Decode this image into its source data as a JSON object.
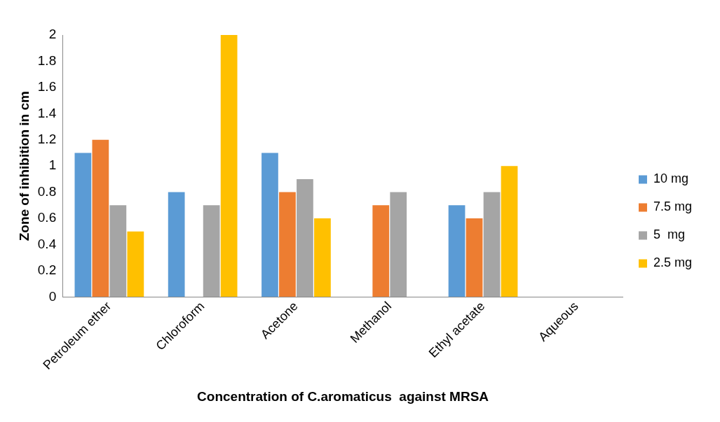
{
  "chart_data": {
    "type": "bar",
    "xlabel": "Concentration of C.aromaticus  against MRSA",
    "ylabel": "Zone of inhibition in cm",
    "categories": [
      "Petroleum ether",
      "Chloroform",
      "Acetone",
      "Methanol",
      "Ethyl acetate",
      "Aqueous"
    ],
    "series": [
      {
        "name": "10 mg",
        "color": "#5b9bd5",
        "values": [
          1.1,
          0.8,
          1.1,
          0,
          0.7,
          0
        ]
      },
      {
        "name": "7.5 mg",
        "color": "#ed7d31",
        "values": [
          1.2,
          0,
          0.8,
          0.7,
          0.6,
          0
        ]
      },
      {
        "name": "5  mg",
        "color": "#a5a5a5",
        "values": [
          0.7,
          0.7,
          0.9,
          0.8,
          0.8,
          0
        ]
      },
      {
        "name": "2.5 mg",
        "color": "#ffc000",
        "values": [
          0.5,
          2,
          0.6,
          0,
          1,
          0
        ]
      }
    ],
    "ylim": [
      0,
      2
    ],
    "yticks": [
      0,
      0.2,
      0.4,
      0.6,
      0.8,
      1,
      1.2,
      1.4,
      1.6,
      1.8,
      2
    ],
    "grid": false,
    "legend": "right"
  }
}
